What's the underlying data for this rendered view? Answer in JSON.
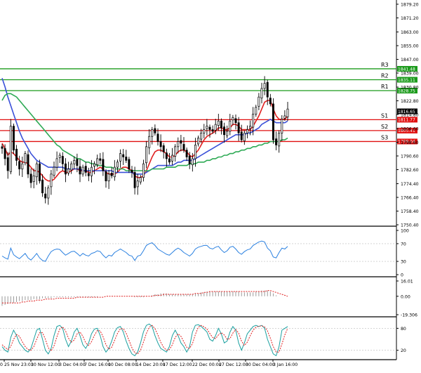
{
  "chart_data": {
    "type": "candlestick",
    "price_axis": {
      "ylim": [
        1750.4,
        1879.2
      ],
      "ticks": [
        "1879.20",
        "1871.20",
        "1863.00",
        "1855.00",
        "1847.00",
        "1839.00",
        "1830.80",
        "1822.80",
        "1814.80",
        "1806.60",
        "1798.60",
        "1790.60",
        "1782.60",
        "1774.40",
        "1766.40",
        "1758.40",
        "1750.40"
      ]
    },
    "x_axis": {
      "labels": [
        "25 Nov 23:01",
        "30 Nov 12:00",
        "3 Dec 04:00",
        "7 Dec 16:00",
        "10 Dec 08:00",
        "14 Dec 20:00",
        "17 Dec 12:00",
        "22 Dec 00:00",
        "27 Dec 12:00",
        "30 Dec 04:00",
        "3 Jan 16:00"
      ],
      "left_edge_label": "0"
    },
    "levels": [
      {
        "name": "R3",
        "value": 1841.48,
        "label": "1841.48",
        "color": "#1a9a1a"
      },
      {
        "name": "R2",
        "value": 1835.11,
        "label": "1835.11",
        "color": "#1a9a1a"
      },
      {
        "name": "R1",
        "value": 1828.75,
        "label": "1828.75",
        "color": "#1a9a1a"
      },
      {
        "name": "S1",
        "value": 1811.77,
        "label": "1811.77",
        "color": "#e01010"
      },
      {
        "name": "S2",
        "value": 1805.41,
        "label": "1805.41",
        "color": "#e01010"
      },
      {
        "name": "S3",
        "value": 1799.04,
        "label": "1799.04",
        "color": "#e01010"
      }
    ],
    "current_price": {
      "value": 1816.65,
      "label": "1816.65"
    },
    "price_series": [
      1795,
      1789,
      1782,
      1808,
      1794,
      1788,
      1783,
      1786,
      1792,
      1780,
      1775,
      1779,
      1786,
      1776,
      1769,
      1766,
      1772,
      1780,
      1784,
      1789,
      1791,
      1786,
      1780,
      1783,
      1786,
      1788,
      1785,
      1780,
      1784,
      1781,
      1779,
      1784,
      1786,
      1789,
      1788,
      1782,
      1776,
      1780,
      1779,
      1784,
      1787,
      1792,
      1790,
      1788,
      1783,
      1781,
      1772,
      1776,
      1778,
      1786,
      1796,
      1802,
      1806,
      1804,
      1799,
      1796,
      1793,
      1789,
      1787,
      1791,
      1796,
      1799,
      1798,
      1794,
      1790,
      1786,
      1789,
      1797,
      1801,
      1804,
      1806,
      1808,
      1806,
      1805,
      1809,
      1811,
      1807,
      1803,
      1805,
      1811,
      1813,
      1810,
      1804,
      1800,
      1804,
      1806,
      1808,
      1815,
      1819,
      1825,
      1830,
      1833,
      1825,
      1821,
      1800,
      1797,
      1804,
      1812,
      1814,
      1818
    ],
    "moving_averages": [
      {
        "color": "#e02020",
        "values": [
          1798,
          1795,
          1791,
          1793,
          1792,
          1790,
          1788,
          1787,
          1787,
          1786,
          1784,
          1782,
          1782,
          1781,
          1779,
          1777,
          1776,
          1776,
          1777,
          1779,
          1781,
          1782,
          1781,
          1781,
          1782,
          1783,
          1783,
          1782,
          1782,
          1782,
          1781,
          1781,
          1782,
          1783,
          1784,
          1783,
          1781,
          1780,
          1780,
          1780,
          1781,
          1783,
          1784,
          1784,
          1783,
          1782,
          1779,
          1778,
          1778,
          1779,
          1782,
          1786,
          1790,
          1793,
          1794,
          1794,
          1793,
          1792,
          1790,
          1790,
          1791,
          1793,
          1794,
          1794,
          1793,
          1791,
          1790,
          1792,
          1794,
          1797,
          1800,
          1802,
          1803,
          1804,
          1805,
          1807,
          1807,
          1806,
          1806,
          1807,
          1809,
          1809,
          1808,
          1806,
          1806,
          1806,
          1806,
          1808,
          1811,
          1814,
          1818,
          1822,
          1823,
          1823,
          1818,
          1814,
          1812,
          1812,
          1812,
          1814
        ]
      },
      {
        "color": "#3a50d8",
        "values": [
          1836,
          1831,
          1825,
          1820,
          1815,
          1810,
          1805,
          1801,
          1798,
          1795,
          1792,
          1790,
          1788,
          1787,
          1786,
          1785,
          1784,
          1784,
          1784,
          1784,
          1784,
          1784,
          1783,
          1783,
          1783,
          1783,
          1783,
          1783,
          1782,
          1782,
          1782,
          1782,
          1782,
          1782,
          1782,
          1782,
          1782,
          1782,
          1782,
          1781,
          1781,
          1781,
          1781,
          1781,
          1781,
          1781,
          1780,
          1780,
          1780,
          1780,
          1781,
          1782,
          1783,
          1784,
          1785,
          1785,
          1785,
          1785,
          1785,
          1785,
          1786,
          1787,
          1787,
          1788,
          1788,
          1788,
          1788,
          1789,
          1790,
          1791,
          1792,
          1793,
          1794,
          1795,
          1796,
          1797,
          1798,
          1799,
          1800,
          1801,
          1802,
          1803,
          1803,
          1803,
          1803,
          1804,
          1804,
          1805,
          1806,
          1807,
          1809,
          1810,
          1811,
          1812,
          1811,
          1810,
          1810,
          1810,
          1810,
          1811
        ]
      },
      {
        "color": "#2eaa55",
        "values": [
          1823,
          1826,
          1827,
          1827,
          1826,
          1825,
          1823,
          1821,
          1819,
          1817,
          1815,
          1813,
          1811,
          1809,
          1807,
          1805,
          1803,
          1801,
          1799,
          1797,
          1796,
          1794,
          1793,
          1792,
          1791,
          1790,
          1789,
          1789,
          1788,
          1787,
          1787,
          1786,
          1786,
          1785,
          1785,
          1785,
          1784,
          1784,
          1784,
          1783,
          1783,
          1783,
          1783,
          1782,
          1782,
          1782,
          1782,
          1782,
          1782,
          1782,
          1782,
          1782,
          1783,
          1783,
          1783,
          1783,
          1783,
          1784,
          1784,
          1784,
          1784,
          1785,
          1785,
          1785,
          1785,
          1786,
          1786,
          1786,
          1787,
          1787,
          1787,
          1788,
          1788,
          1789,
          1789,
          1790,
          1790,
          1791,
          1791,
          1792,
          1792,
          1793,
          1793,
          1794,
          1794,
          1795,
          1795,
          1796,
          1796,
          1797,
          1797,
          1798,
          1798,
          1799,
          1799,
          1799,
          1799,
          1800,
          1800,
          1801
        ]
      }
    ],
    "indicators": [
      {
        "name": "rsi",
        "ticks": [
          "100",
          "70",
          "30",
          "0"
        ],
        "ylim": [
          0,
          100
        ],
        "color": "#2a80e0",
        "values": [
          42,
          38,
          35,
          60,
          45,
          40,
          36,
          42,
          48,
          38,
          33,
          40,
          48,
          38,
          32,
          30,
          42,
          52,
          56,
          58,
          57,
          50,
          44,
          48,
          52,
          53,
          48,
          42,
          48,
          44,
          42,
          48,
          50,
          54,
          52,
          44,
          38,
          44,
          42,
          50,
          54,
          58,
          54,
          50,
          44,
          42,
          32,
          42,
          44,
          54,
          66,
          70,
          72,
          66,
          58,
          54,
          50,
          46,
          44,
          50,
          56,
          60,
          56,
          50,
          46,
          42,
          48,
          58,
          62,
          64,
          66,
          66,
          60,
          58,
          62,
          64,
          56,
          50,
          54,
          62,
          64,
          58,
          50,
          46,
          52,
          56,
          58,
          66,
          70,
          74,
          76,
          74,
          60,
          54,
          40,
          38,
          50,
          60,
          58,
          64
        ]
      },
      {
        "name": "macd",
        "ticks": [
          "16.01",
          "0.00",
          "-19.306"
        ],
        "ylim": [
          -19.306,
          16.01
        ],
        "histogram": [
          -10,
          -9,
          -8,
          -7,
          -7,
          -6,
          -5,
          -5,
          -4,
          -4,
          -4,
          -3,
          -3,
          -3,
          -2,
          -2,
          -2,
          -2,
          -1,
          -1,
          -1,
          -1,
          -1,
          -1,
          -1,
          -1,
          -1,
          -1,
          -1,
          -1,
          -1,
          -1,
          -1,
          -1,
          0,
          0,
          0,
          0,
          0,
          0,
          0,
          0,
          0,
          0,
          0,
          0,
          -1,
          -1,
          -1,
          -1,
          0,
          0,
          1,
          2,
          2,
          3,
          3,
          3,
          2,
          2,
          2,
          2,
          2,
          2,
          2,
          2,
          2,
          3,
          3,
          4,
          4,
          5,
          5,
          5,
          5,
          5,
          5,
          5,
          5,
          5,
          5,
          5,
          5,
          4,
          4,
          4,
          4,
          4,
          5,
          5,
          6,
          6,
          6,
          5,
          3,
          1,
          0,
          0,
          0,
          0
        ],
        "signal": [
          -7,
          -7,
          -7,
          -7,
          -7,
          -7,
          -7,
          -6,
          -6,
          -5,
          -5,
          -5,
          -4,
          -4,
          -4,
          -3,
          -3,
          -3,
          -3,
          -2,
          -2,
          -2,
          -2,
          -2,
          -2,
          -2,
          -1,
          -1,
          -1,
          -1,
          -1,
          -1,
          -1,
          -1,
          -1,
          -1,
          0,
          0,
          0,
          0,
          0,
          0,
          0,
          0,
          0,
          0,
          0,
          0,
          0,
          0,
          0,
          0,
          0,
          1,
          1,
          1,
          2,
          2,
          2,
          2,
          2,
          2,
          2,
          2,
          2,
          2,
          2,
          3,
          3,
          3,
          4,
          4,
          5,
          5,
          5,
          5,
          5,
          5,
          5,
          5,
          5,
          5,
          5,
          5,
          5,
          5,
          5,
          5,
          5,
          5,
          5,
          5,
          6,
          6,
          5,
          4,
          3,
          2,
          1,
          0
        ],
        "signal_color": "#e02020",
        "hist_color": "#999999"
      },
      {
        "name": "stochastic",
        "ticks": [
          "80",
          "20"
        ],
        "ylim": [
          0,
          100
        ],
        "k_color": "#1aa0a0",
        "d_color": "#e02020",
        "k": [
          30,
          20,
          15,
          55,
          75,
          60,
          40,
          30,
          20,
          15,
          25,
          50,
          75,
          80,
          50,
          20,
          10,
          25,
          60,
          85,
          88,
          80,
          50,
          30,
          45,
          70,
          80,
          60,
          35,
          25,
          40,
          65,
          78,
          80,
          60,
          30,
          15,
          25,
          45,
          70,
          82,
          85,
          70,
          45,
          25,
          10,
          5,
          15,
          40,
          70,
          88,
          92,
          85,
          60,
          40,
          25,
          20,
          15,
          30,
          60,
          75,
          60,
          40,
          30,
          15,
          30,
          70,
          88,
          90,
          85,
          78,
          70,
          50,
          45,
          60,
          80,
          65,
          40,
          45,
          70,
          85,
          75,
          40,
          20,
          40,
          65,
          75,
          85,
          88,
          85,
          88,
          80,
          50,
          30,
          10,
          5,
          30,
          75,
          80,
          85
        ],
        "d": [
          35,
          28,
          22,
          30,
          50,
          63,
          58,
          43,
          30,
          22,
          20,
          30,
          50,
          68,
          68,
          50,
          27,
          18,
          32,
          57,
          78,
          84,
          73,
          53,
          42,
          48,
          65,
          70,
          58,
          40,
          33,
          43,
          61,
          74,
          73,
          57,
          35,
          23,
          28,
          47,
          66,
          79,
          79,
          67,
          47,
          27,
          13,
          10,
          20,
          42,
          66,
          83,
          88,
          79,
          62,
          42,
          28,
          20,
          22,
          35,
          55,
          65,
          58,
          43,
          28,
          25,
          38,
          63,
          83,
          88,
          84,
          78,
          66,
          55,
          52,
          62,
          68,
          62,
          50,
          52,
          67,
          77,
          67,
          45,
          33,
          42,
          60,
          75,
          83,
          86,
          87,
          84,
          73,
          53,
          30,
          15,
          15,
          37,
          62,
          80
        ]
      }
    ]
  }
}
